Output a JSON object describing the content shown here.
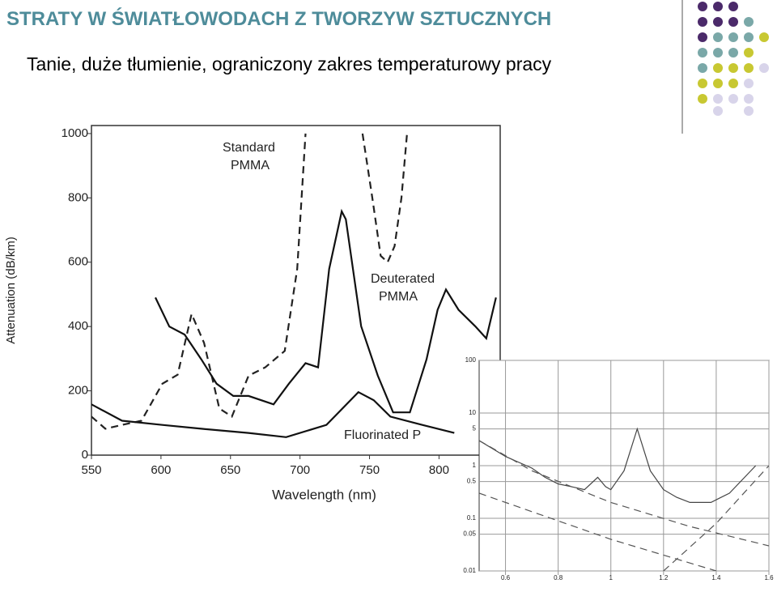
{
  "header": {
    "title": "STRATY W ŚWIATŁOWODACH Z TWORZYW SZTUCZNYCH",
    "subtitle": "Tanie,  duże tłumienie, ograniczony zakres temperaturowy pracy"
  },
  "chart_data": [
    {
      "type": "line",
      "xlabel": "Wavelength (nm)",
      "ylabel": "Attenuation (dB/km)",
      "xlim": [
        550,
        844
      ],
      "ylim": [
        0,
        1025
      ],
      "xticks": [
        550,
        600,
        650,
        700,
        750,
        800
      ],
      "yticks": [
        0,
        200,
        400,
        600,
        800,
        1000
      ],
      "series": [
        {
          "label": [
            "Standard",
            "PMMA"
          ],
          "color": "#222",
          "dash": true,
          "x": [
            550,
            560,
            572,
            586,
            601,
            612,
            622,
            631,
            642,
            651,
            663,
            675,
            689,
            698,
            704,
            725,
            745,
            752,
            758,
            763,
            768,
            773,
            777
          ],
          "values": [
            120,
            82,
            94,
            107,
            222,
            250,
            439,
            349,
            145,
            120,
            247,
            273,
            324,
            579,
            1000,
            null,
            1000,
            800,
            620,
            600,
            650,
            800,
            1000
          ]
        },
        {
          "label": [
            "Deuterated",
            "PMMA"
          ],
          "color": "#111",
          "dash": false,
          "x": [
            596,
            606,
            617,
            629,
            640,
            652,
            663,
            681,
            692,
            704,
            713,
            721,
            730,
            733,
            744,
            756,
            767,
            779,
            791,
            799,
            805,
            814,
            826,
            834,
            841
          ],
          "values": [
            490,
            400,
            375,
            298,
            222,
            184,
            184,
            158,
            222,
            286,
            273,
            579,
            758,
            733,
            401,
            247,
            133,
            133,
            298,
            452,
            515,
            452,
            401,
            363,
            490
          ]
        },
        {
          "label": [
            "Fluorinated P"
          ],
          "color": "#111",
          "dash": false,
          "x": [
            550,
            572,
            601,
            629,
            663,
            690,
            719,
            742,
            753,
            765,
            788,
            811
          ],
          "values": [
            158,
            107,
            94,
            82,
            69,
            56,
            94,
            196,
            171,
            120,
            94,
            69
          ]
        }
      ]
    },
    {
      "type": "line",
      "log_y": true,
      "xlim": [
        0.5,
        1.6
      ],
      "ylim": [
        0.01,
        100
      ],
      "xticks": [
        0.6,
        0.8,
        1.0,
        1.2,
        1.4,
        1.6
      ],
      "yticks": [
        0.01,
        0.05,
        0.1,
        0.5,
        1,
        5,
        10,
        100
      ],
      "series": [
        {
          "color": "#444",
          "dash": false,
          "x": [
            0.5,
            0.6,
            0.7,
            0.75,
            0.8,
            0.85,
            0.9,
            0.95,
            0.98,
            1.0,
            1.05,
            1.1,
            1.15,
            1.2,
            1.25,
            1.3,
            1.38,
            1.45,
            1.55
          ],
          "values": [
            3,
            1.5,
            0.9,
            0.6,
            0.45,
            0.4,
            0.35,
            0.6,
            0.4,
            0.35,
            0.8,
            5,
            0.8,
            0.35,
            0.25,
            0.2,
            0.2,
            0.3,
            1
          ]
        },
        {
          "color": "#555",
          "dash": true,
          "x": [
            0.5,
            0.7,
            1.0,
            1.3,
            1.6
          ],
          "values": [
            3,
            0.8,
            0.2,
            0.07,
            0.03
          ]
        },
        {
          "color": "#555",
          "dash": true,
          "x": [
            1.2,
            1.4,
            1.6
          ],
          "values": [
            0.01,
            0.08,
            1
          ]
        },
        {
          "color": "#555",
          "dash": true,
          "x": [
            0.5,
            1.0,
            1.4
          ],
          "values": [
            0.3,
            0.04,
            0.01
          ]
        }
      ]
    }
  ]
}
